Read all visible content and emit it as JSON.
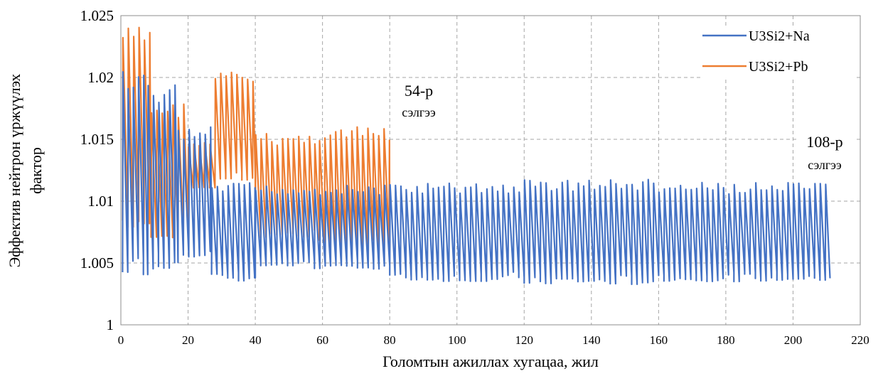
{
  "chart_data": {
    "type": "line",
    "title": "",
    "xlabel": "Голомтын ажиллах хугацаа, жил",
    "ylabel_line1": "Эффектив нейтрон үржүүлэх",
    "ylabel_line2": "фактор",
    "xlim": [
      0,
      220
    ],
    "ylim": [
      1.0,
      1.025
    ],
    "x_ticks": [
      "0",
      "20",
      "40",
      "60",
      "80",
      "100",
      "120",
      "140",
      "160",
      "180",
      "200",
      "220"
    ],
    "y_ticks": [
      "1",
      "1.005",
      "1.01",
      "1.015",
      "1.02",
      "1.025"
    ],
    "grid": true,
    "legend_position": "top-right",
    "series": [
      {
        "name": "U3Si2+Na",
        "color": "#4472c4",
        "x_start": 0.5,
        "x_end": 211,
        "cycles": [
          {
            "x_from": 0.5,
            "x_to": 8,
            "period": 1.55,
            "low": 1.004,
            "high": 1.0205
          },
          {
            "x_from": 8,
            "x_to": 17,
            "period": 1.6,
            "low": 1.0045,
            "high": 1.0195
          },
          {
            "x_from": 17,
            "x_to": 27,
            "period": 1.6,
            "low": 1.0055,
            "high": 1.016
          },
          {
            "x_from": 27,
            "x_to": 40,
            "period": 1.6,
            "low": 1.0035,
            "high": 1.0115
          },
          {
            "x_from": 40,
            "x_to": 80,
            "period": 1.6,
            "low": 1.0045,
            "high": 1.0113
          },
          {
            "x_from": 80,
            "x_to": 120,
            "period": 1.6,
            "low": 1.0035,
            "high": 1.0115
          },
          {
            "x_from": 120,
            "x_to": 160,
            "period": 1.6,
            "low": 1.0032,
            "high": 1.0118
          },
          {
            "x_from": 160,
            "x_to": 211,
            "period": 1.6,
            "low": 1.0035,
            "high": 1.0115
          }
        ]
      },
      {
        "name": "U3Si2+Pb",
        "color": "#ed7d31",
        "x_start": 0.5,
        "x_end": 80,
        "cycles": [
          {
            "x_from": 0.5,
            "x_to": 9,
            "period": 1.6,
            "low": 1.0075,
            "high": 1.0242
          },
          {
            "x_from": 9,
            "x_to": 20,
            "period": 1.6,
            "low": 1.007,
            "high": 1.018
          },
          {
            "x_from": 20,
            "x_to": 28,
            "period": 1.6,
            "low": 1.011,
            "high": 1.0148
          },
          {
            "x_from": 28,
            "x_to": 40,
            "period": 1.6,
            "low": 1.0115,
            "high": 1.0205
          },
          {
            "x_from": 40,
            "x_to": 59,
            "period": 1.6,
            "low": 1.007,
            "high": 1.0155
          },
          {
            "x_from": 59,
            "x_to": 80,
            "period": 1.6,
            "low": 1.006,
            "high": 1.016
          }
        ]
      }
    ],
    "annotations": [
      {
        "line1": "54-р",
        "line2": "сэлгээ",
        "x": 83,
        "y": 1.0172
      },
      {
        "line1": "108-р",
        "line2": "сэлгээ",
        "x": 202,
        "y": 1.0122
      }
    ]
  }
}
